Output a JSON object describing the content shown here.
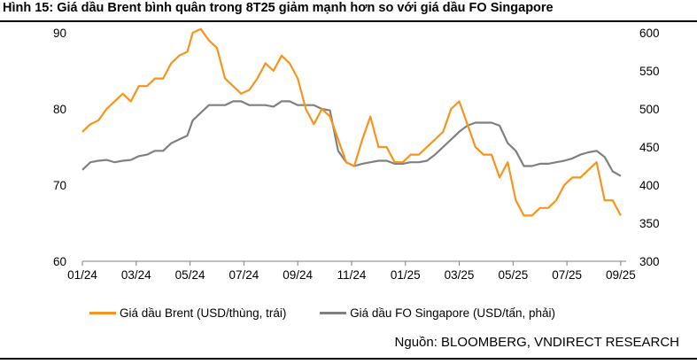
{
  "title": "Hình 15: Giá dầu Brent bình quân trong 8T25 giảm mạnh hơn so với giá dầu FO Singapore",
  "source": "Nguồn: BLOOMBERG, VNDIRECT RESEARCH",
  "chart_data": {
    "type": "line",
    "title": "Hình 15: Giá dầu Brent bình quân trong 8T25 giảm mạnh hơn so với giá dầu FO Singapore",
    "x_ticks": [
      "01/24",
      "03/24",
      "05/24",
      "07/24",
      "09/24",
      "11/24",
      "01/25",
      "03/25",
      "05/25",
      "07/25",
      "09/25"
    ],
    "x_range": [
      0,
      20.2
    ],
    "y_left": {
      "range": [
        60,
        90
      ],
      "ticks": [
        60,
        70,
        80,
        90
      ]
    },
    "y_right": {
      "range": [
        300,
        600
      ],
      "ticks": [
        300,
        350,
        400,
        450,
        500,
        550,
        600
      ]
    },
    "legend_position": "bottom",
    "grid": false,
    "series": [
      {
        "name": "Giá dầu Brent (USD/thùng, trái)",
        "axis": "left",
        "color": "#F7941D",
        "x": [
          0,
          0.3,
          0.6,
          0.9,
          1.2,
          1.5,
          1.8,
          2.1,
          2.4,
          2.7,
          3.0,
          3.3,
          3.6,
          3.9,
          4.1,
          4.4,
          4.7,
          5.0,
          5.3,
          5.6,
          5.9,
          6.2,
          6.5,
          6.8,
          7.1,
          7.4,
          7.7,
          8.0,
          8.3,
          8.6,
          8.9,
          9.2,
          9.5,
          9.8,
          10.1,
          10.4,
          10.7,
          11.0,
          11.3,
          11.6,
          11.9,
          12.2,
          12.5,
          12.8,
          13.1,
          13.4,
          13.7,
          14.0,
          14.3,
          14.6,
          14.9,
          15.2,
          15.5,
          15.8,
          16.1,
          16.4,
          16.7,
          17.0,
          17.3,
          17.6,
          17.9,
          18.2,
          18.5,
          18.8,
          19.1,
          19.4,
          19.7,
          20.0
        ],
        "values": [
          77,
          78,
          78.5,
          80,
          81,
          82,
          81,
          83,
          83,
          84,
          84,
          86,
          87,
          87.5,
          90,
          90.5,
          89,
          88,
          84,
          83,
          82,
          82.5,
          84,
          86,
          85,
          87,
          86,
          84,
          80,
          78,
          80,
          79,
          76,
          73,
          72.5,
          76,
          79,
          75,
          75,
          73,
          73,
          74,
          74,
          75,
          76,
          77,
          80,
          81,
          78,
          75,
          74,
          74,
          71,
          73,
          68,
          66,
          66,
          67,
          67,
          68,
          70,
          71,
          71,
          72,
          73,
          68,
          68,
          66
        ]
      },
      {
        "name": "Giá dầu FO Singapore (USD/tấn, phải)",
        "axis": "right",
        "color": "#808080",
        "x": [
          0,
          0.3,
          0.6,
          0.9,
          1.2,
          1.5,
          1.8,
          2.1,
          2.4,
          2.7,
          3.0,
          3.3,
          3.6,
          3.9,
          4.1,
          4.4,
          4.7,
          5.0,
          5.3,
          5.6,
          5.9,
          6.2,
          6.5,
          6.8,
          7.1,
          7.4,
          7.7,
          8.0,
          8.3,
          8.6,
          8.9,
          9.2,
          9.5,
          9.8,
          10.1,
          10.4,
          10.7,
          11.0,
          11.3,
          11.6,
          11.9,
          12.2,
          12.5,
          12.8,
          13.1,
          13.4,
          13.7,
          14.0,
          14.3,
          14.6,
          14.9,
          15.2,
          15.5,
          15.8,
          16.1,
          16.4,
          16.7,
          17.0,
          17.3,
          17.6,
          17.9,
          18.2,
          18.5,
          18.8,
          19.1,
          19.4,
          19.7,
          20.0
        ],
        "values": [
          420,
          430,
          432,
          433,
          430,
          432,
          433,
          438,
          440,
          445,
          445,
          455,
          460,
          465,
          485,
          495,
          505,
          505,
          505,
          510,
          510,
          505,
          505,
          505,
          503,
          510,
          510,
          505,
          505,
          505,
          500,
          498,
          445,
          430,
          425,
          428,
          430,
          432,
          432,
          428,
          428,
          430,
          430,
          432,
          440,
          450,
          460,
          470,
          478,
          482,
          482,
          482,
          478,
          455,
          445,
          425,
          425,
          428,
          428,
          430,
          432,
          435,
          440,
          443,
          445,
          437,
          418,
          412
        ]
      }
    ]
  }
}
